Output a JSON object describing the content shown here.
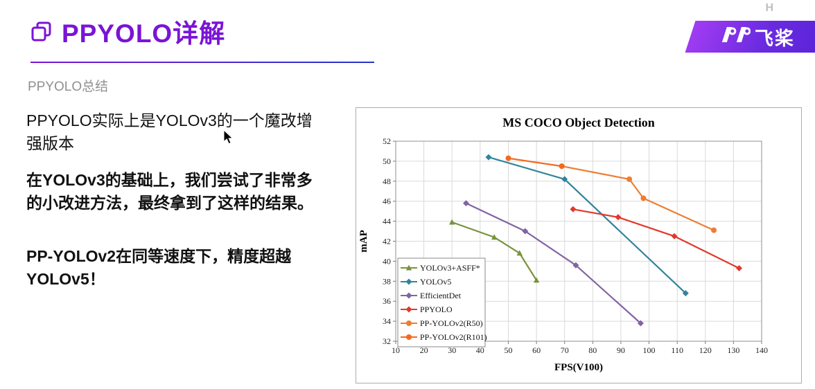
{
  "page": {
    "background": "#ffffff",
    "accent_purple": "#7a14d6"
  },
  "header": {
    "title": "PPYOLO详解",
    "subtitle": "PPYOLO总结"
  },
  "logo": {
    "brand_text": "飞桨",
    "badge_letter": "H"
  },
  "body": {
    "para1": "PPYOLO实际上是YOLOv3的一个魔改增强版本",
    "para2": "在YOLOv3的基础上，我们尝试了非常多的小改进方法，最终拿到了这样的结果。",
    "para3": "PP-YOLOv2在同等速度下，精度超越YOLOv5！"
  },
  "chart_data": {
    "type": "line",
    "title": "MS COCO Object Detection",
    "xlabel": "FPS(V100)",
    "ylabel": "mAP",
    "xlim": [
      10,
      140
    ],
    "ylim": [
      32,
      52
    ],
    "xticks": [
      10,
      20,
      30,
      40,
      50,
      60,
      70,
      80,
      90,
      100,
      110,
      120,
      130,
      140
    ],
    "yticks": [
      32,
      34,
      36,
      38,
      40,
      42,
      44,
      46,
      48,
      50,
      52
    ],
    "grid": true,
    "legend_position": "lower-left",
    "series": [
      {
        "name": "YOLOv3+ASFF*",
        "color": "#77933c",
        "marker": "triangle",
        "points": [
          [
            30,
            43.9
          ],
          [
            45,
            42.4
          ],
          [
            54,
            40.8
          ],
          [
            60,
            38.1
          ]
        ]
      },
      {
        "name": "YOLOv5",
        "color": "#31849b",
        "marker": "diamond",
        "points": [
          [
            43,
            50.4
          ],
          [
            70,
            48.2
          ],
          [
            113,
            36.8
          ]
        ]
      },
      {
        "name": "EfficientDet",
        "color": "#8064a2",
        "marker": "diamond",
        "points": [
          [
            35,
            45.8
          ],
          [
            56,
            43.0
          ],
          [
            74,
            39.6
          ],
          [
            97,
            33.8
          ]
        ]
      },
      {
        "name": "PPYOLO",
        "color": "#e2382d",
        "marker": "diamond",
        "points": [
          [
            73,
            45.2
          ],
          [
            89,
            44.4
          ],
          [
            109,
            42.5
          ],
          [
            132,
            39.3
          ]
        ]
      },
      {
        "name": "PP-YOLOv2(R50)",
        "color": "#ed7d31",
        "marker": "circle",
        "points": [
          [
            69,
            49.5
          ],
          [
            93,
            48.2
          ],
          [
            98,
            46.3
          ],
          [
            123,
            43.1
          ]
        ]
      },
      {
        "name": "PP-YOLOv2(R101)",
        "color": "#f4691e",
        "marker": "circle",
        "points": [
          [
            50,
            50.3
          ],
          [
            69,
            49.5
          ]
        ]
      }
    ]
  }
}
